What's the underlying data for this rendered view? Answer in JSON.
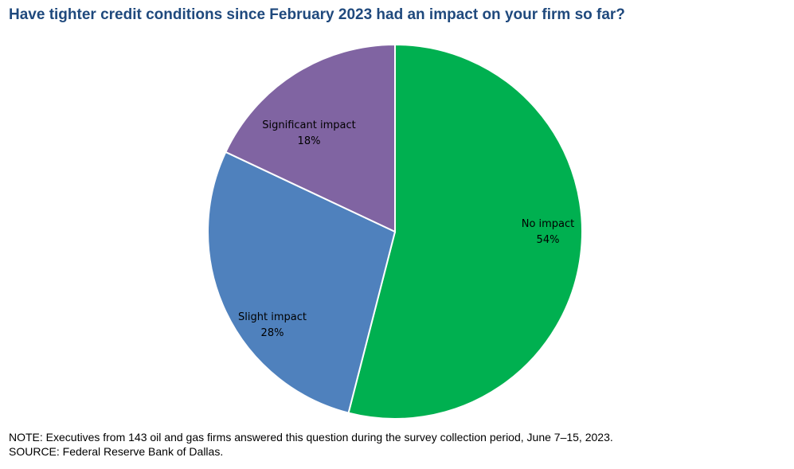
{
  "chart_data": {
    "type": "pie",
    "title": "Have tighter credit conditions since February 2023 had an impact on your firm so far?",
    "slices": [
      {
        "label": "No impact",
        "value": 54,
        "value_label": "54%",
        "color": "#00b050"
      },
      {
        "label": "Slight impact",
        "value": 28,
        "value_label": "28%",
        "color": "#4f81bd"
      },
      {
        "label": "Significant impact",
        "value": 18,
        "value_label": "18%",
        "color": "#8064a2"
      }
    ],
    "start": "12 o'clock",
    "direction": "clockwise",
    "legend": "none (labels inside slices)"
  },
  "footer": {
    "note": "NOTE:  Executives  from 143 oil and gas firms answered this question during the survey collection period, June 7–15, 2023.",
    "source": "SOURCE:  Federal Reserve Bank of Dallas."
  }
}
